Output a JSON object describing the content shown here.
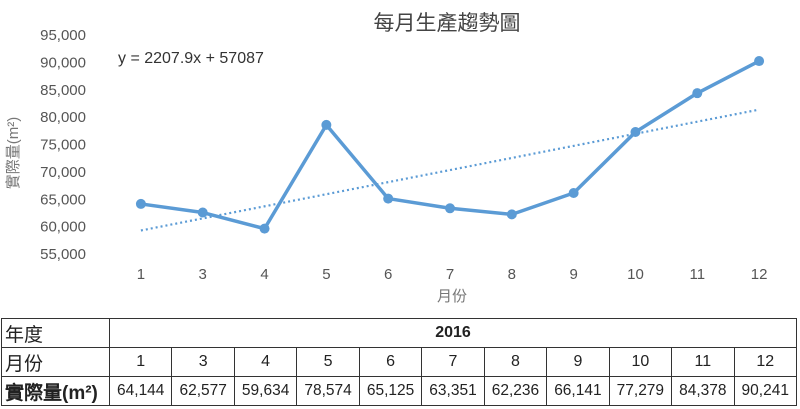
{
  "chart_data": {
    "type": "line",
    "title": "每月生產趨勢圖",
    "xlabel": "月份",
    "ylabel": "實際量(m²)",
    "categories": [
      "1",
      "3",
      "4",
      "5",
      "6",
      "7",
      "8",
      "9",
      "10",
      "11",
      "12"
    ],
    "series": [
      {
        "values": [
          64144,
          62577,
          59634,
          78574,
          65125,
          63351,
          62236,
          66141,
          77279,
          84378,
          90241
        ],
        "color": "#5B9BD5"
      }
    ],
    "trendline": {
      "type": "linear",
      "equation": "y = 2207.9x + 57087",
      "slope": 2207.9,
      "intercept": 57087,
      "color": "#5B9BD5",
      "style": "dotted"
    },
    "ylim": [
      55000,
      95000
    ],
    "yticks": [
      "55,000",
      "60,000",
      "65,000",
      "70,000",
      "75,000",
      "80,000",
      "85,000",
      "90,000",
      "95,000"
    ],
    "grid": false,
    "legend": "none"
  },
  "table": {
    "row_year_label": "年度",
    "year": "2016",
    "row_month_label": "月份",
    "months": [
      "1",
      "3",
      "4",
      "5",
      "6",
      "7",
      "8",
      "9",
      "10",
      "11",
      "12"
    ],
    "row_value_label": "實際量(m²)",
    "values": [
      "64,144",
      "62,577",
      "59,634",
      "78,574",
      "65,125",
      "63,351",
      "62,236",
      "66,141",
      "77,279",
      "84,378",
      "90,241"
    ]
  }
}
